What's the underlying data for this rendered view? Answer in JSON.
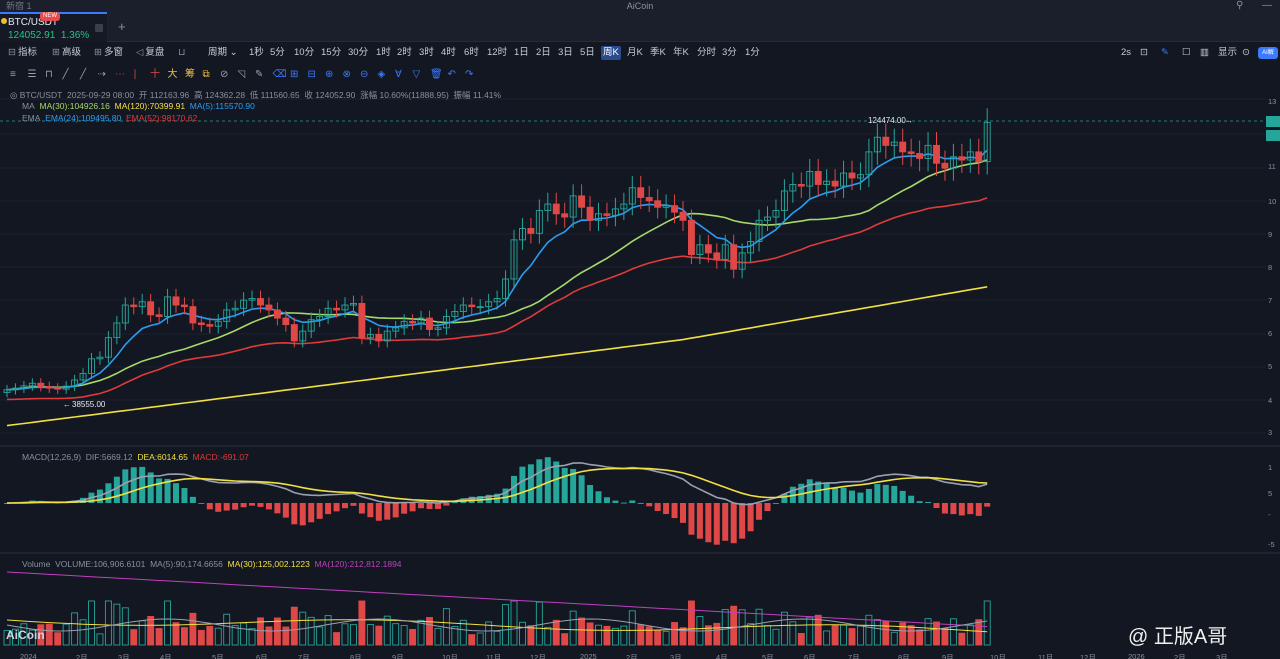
{
  "window": {
    "title": "AiCoin",
    "tab_group": "新宿 1"
  },
  "tab": {
    "symbol": "BTC/USDT",
    "price": "124052.91",
    "change": "1.36%",
    "badge": "NEW",
    "add_label": "+"
  },
  "toolbar": {
    "indicators": "指标",
    "advanced": "高级",
    "multi_window": "多窗",
    "replay": "复盘",
    "period": "周期",
    "intervals": [
      "1秒",
      "5分",
      "10分",
      "15分",
      "30分",
      "1时",
      "2时",
      "3时",
      "4时",
      "6时",
      "12时",
      "1日",
      "2日",
      "3日",
      "5日",
      "周K",
      "月K",
      "季K",
      "年K",
      "分时",
      "3分",
      "1分"
    ],
    "active_interval": "周K",
    "refresh": "2s",
    "display": "显示",
    "ai": "AI解"
  },
  "draw_tools": [
    "≡",
    "☰",
    "⊓",
    "╱",
    "╱",
    "⇢",
    "⋯",
    "∣",
    "十",
    "大",
    "筹",
    "⧉",
    "⊘",
    "◹",
    "✎",
    "⌫",
    "⊞",
    "⊟",
    "⊕",
    "⊗",
    "⊖",
    "◈",
    "∀",
    "▽",
    "🗑",
    "↶",
    "↷"
  ],
  "legend": {
    "main": {
      "symbol": "BTC/USDT",
      "date": "2025-09-29 08:00",
      "open": "开 112163.96",
      "high": "高 124362.28",
      "low": "低 111560.65",
      "close": "收 124052.90",
      "change": "涨幅 10.60%(11888.95)",
      "amplitude": "振幅 11.41%"
    },
    "ma": {
      "label": "MA",
      "ma30": "MA(30):104926.16",
      "ma120": "MA(120):70399.91",
      "ma5": "MA(5):115570.90"
    },
    "ema": {
      "label": "EMA",
      "ema24": "EMA(24):109495.80",
      "ema52": "EMA(52):98170.62"
    },
    "macd": {
      "label": "MACD(12,26,9)",
      "dif": "DIF:5669.12",
      "dea": "DEA:6014.65",
      "macd": "MACD:-691.07"
    },
    "volume": {
      "label": "Volume",
      "vol": "VOLUME:106,906.6101",
      "ma5": "MA(5):90,174.6656",
      "ma30": "MA(30):125,002.1223",
      "ma120": "MA(120):212,812.1894"
    }
  },
  "annotations": {
    "high": "124474.00",
    "low": "38555.00"
  },
  "right_axis": [
    "13",
    "12",
    "1",
    "11",
    "10",
    "9",
    "8",
    "7",
    "6",
    "5",
    "4",
    "3",
    "1",
    "5",
    "-",
    "-5"
  ],
  "x_axis": [
    "2024",
    "2月",
    "3月",
    "4月",
    "5月",
    "6月",
    "7月",
    "8月",
    "9月",
    "10月",
    "11月",
    "12月",
    "2025",
    "2月",
    "3月",
    "4月",
    "5月",
    "6月",
    "7月",
    "8月",
    "9月",
    "10月",
    "11月",
    "12月",
    "2026",
    "2月",
    "3月"
  ],
  "branding": {
    "logo": "AiCoin",
    "footer": "@ 正版A哥"
  },
  "colors": {
    "up": "#26a69a",
    "down": "#e04848",
    "ma5": "#2a9df4",
    "ma30": "#a6d96a",
    "ma120": "#f0e040",
    "ema52": "#e03a3a",
    "dif": "#9aa0b0",
    "dea": "#f0e040",
    "vol_ma30": "#f0e040",
    "vol_ma120": "#c040c0",
    "accent": "#3a7afe"
  },
  "chart_data": {
    "type": "candlestick",
    "x_range": [
      "2024",
      "2026"
    ],
    "ylim": [
      30000,
      130000
    ],
    "close": [
      42000,
      42500,
      43200,
      44000,
      43000,
      42500,
      42200,
      43100,
      45000,
      47000,
      51500,
      52000,
      58000,
      62500,
      68000,
      67500,
      69000,
      65000,
      64500,
      70500,
      68000,
      67500,
      62500,
      62000,
      61500,
      63000,
      66500,
      67000,
      69500,
      70000,
      68000,
      66500,
      64000,
      62000,
      57000,
      60000,
      63500,
      64500,
      67000,
      66500,
      68000,
      68500,
      58000,
      59000,
      57000,
      60000,
      61000,
      63000,
      62500,
      64000,
      60500,
      61000,
      64500,
      66000,
      68000,
      67500,
      67500,
      69000,
      70000,
      76000,
      88000,
      91500,
      90000,
      97000,
      99000,
      96000,
      95000,
      101500,
      98000,
      94000,
      96000,
      95500,
      97500,
      99000,
      104000,
      101000,
      100000,
      98000,
      98500,
      96500,
      94000,
      83500,
      86500,
      84000,
      82000,
      86500,
      79000,
      84000,
      87500,
      94000,
      95000,
      97000,
      103000,
      105000,
      104500,
      109000,
      105000,
      106000,
      104500,
      108500,
      107000,
      108000,
      115000,
      119500,
      117000,
      118000,
      115000,
      114500,
      113000,
      117000,
      111500,
      110000,
      113500,
      112500,
      115000,
      112000,
      124052
    ]
  }
}
